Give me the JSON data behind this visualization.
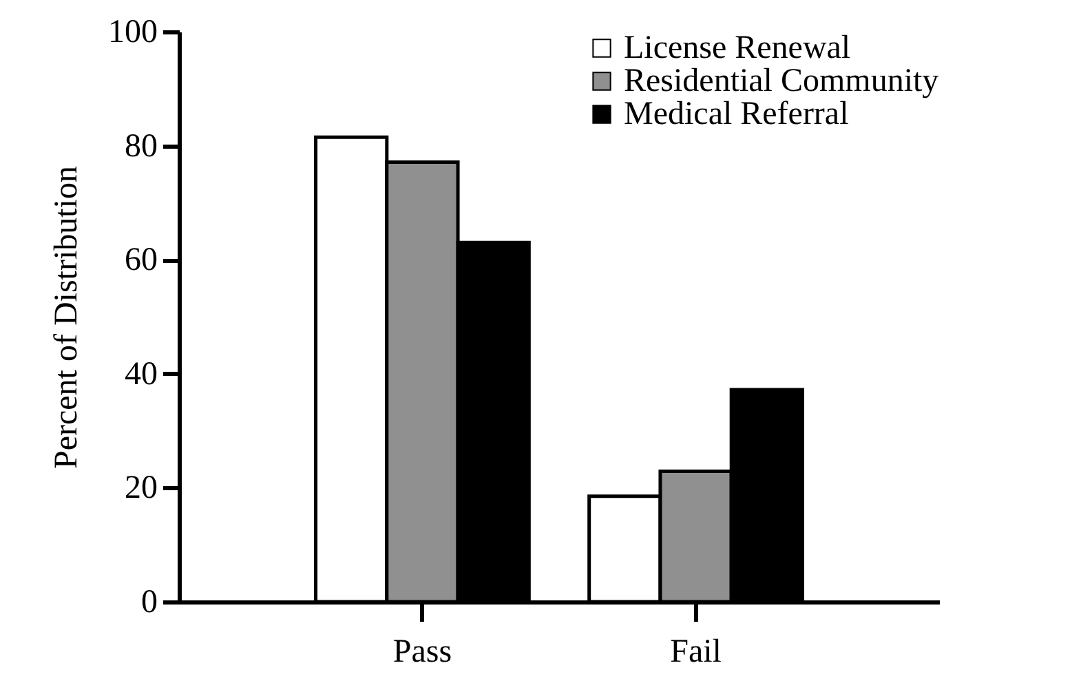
{
  "chart_data": {
    "type": "bar",
    "ylabel": "Percent of Distribution",
    "categories": [
      "Pass",
      "Fail"
    ],
    "series": [
      {
        "name": "License Renewal",
        "color": "#ffffff",
        "values": [
          81.5,
          18.5
        ]
      },
      {
        "name": "Residential Community",
        "color": "#909090",
        "values": [
          77.1,
          22.9
        ]
      },
      {
        "name": "Medical Referral",
        "color": "#000000",
        "values": [
          63.0,
          37.2
        ]
      }
    ],
    "ylim": [
      0,
      100
    ],
    "yticks": [
      0,
      20,
      40,
      60,
      80,
      100
    ],
    "legend": "top right"
  }
}
